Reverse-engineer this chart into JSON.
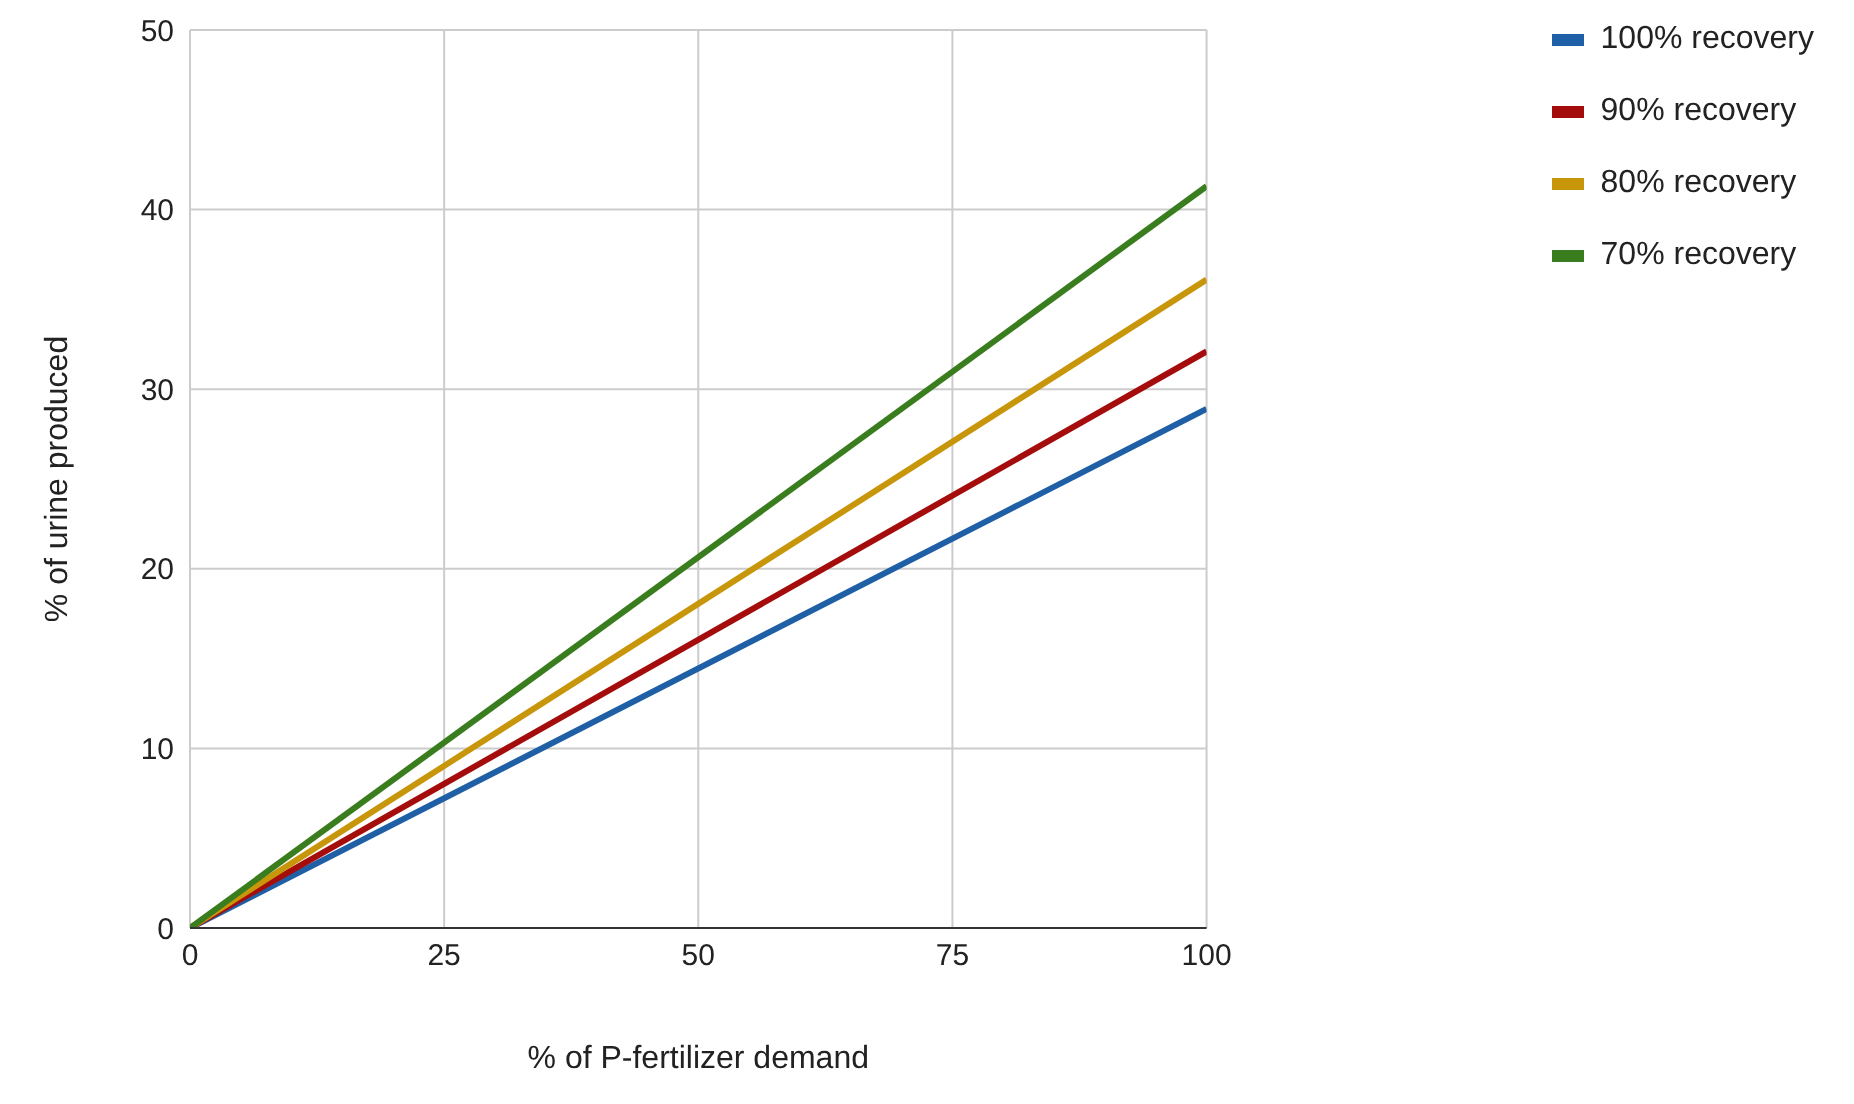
{
  "chart_data": {
    "type": "line",
    "xlabel": "% of P-fertilizer demand",
    "ylabel": "% of urine produced",
    "x": [
      0,
      100
    ],
    "series": [
      {
        "name": "100% recovery",
        "color": "#1f5fa6",
        "values": [
          0,
          28.9
        ]
      },
      {
        "name": "90% recovery",
        "color": "#a50d0d",
        "values": [
          0,
          32.1
        ]
      },
      {
        "name": "80% recovery",
        "color": "#c8960a",
        "values": [
          0,
          36.1
        ]
      },
      {
        "name": "70% recovery",
        "color": "#3a7d1e",
        "values": [
          0,
          41.3
        ]
      }
    ],
    "xlim": [
      0,
      100
    ],
    "xticks": [
      0,
      25,
      50,
      75,
      100
    ],
    "ylim": [
      0,
      50
    ],
    "yticks": [
      0,
      10,
      20,
      30,
      40,
      50
    ],
    "grid": true,
    "legend": "top right",
    "marker": "none",
    "line_style": "solid"
  }
}
